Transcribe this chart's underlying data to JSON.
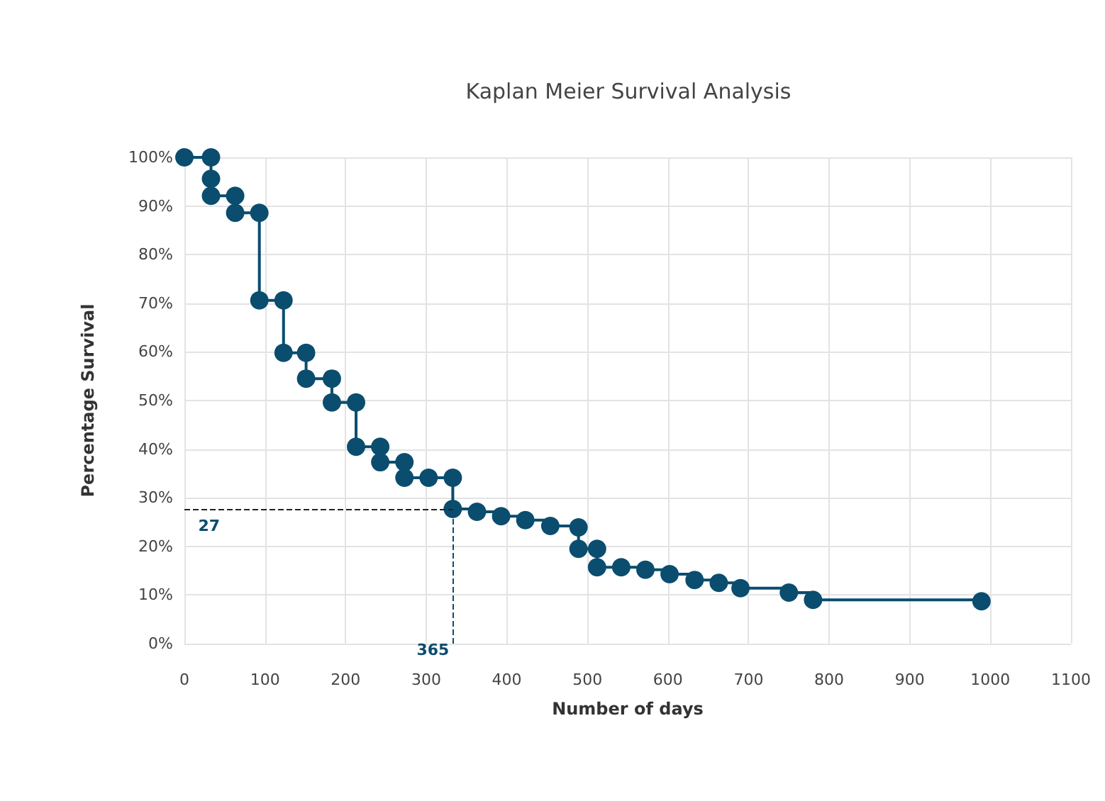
{
  "chart_data": {
    "type": "step",
    "title": "Kaplan Meier Survival Analysis",
    "xlabel": "Number of days",
    "ylabel": "Percentage Survival",
    "x": [
      0,
      33,
      33,
      33,
      63,
      63,
      93,
      93,
      123,
      123,
      151,
      151,
      183,
      183,
      213,
      213,
      243,
      243,
      273,
      273,
      303,
      333,
      333,
      363,
      393,
      423,
      454,
      489,
      489,
      512,
      512,
      542,
      572,
      602,
      633,
      663,
      690,
      750,
      780,
      989
    ],
    "series": [
      {
        "color": "#0a4d6e",
        "values": [
          100,
          100,
          95.6,
          92.1,
          92.1,
          88.6,
          88.6,
          70.6,
          70.6,
          59.8,
          59.8,
          54.5,
          54.5,
          49.6,
          49.6,
          40.5,
          40.5,
          37.3,
          37.3,
          34.1,
          34.1,
          34.1,
          27.7,
          27.1,
          26.2,
          25.4,
          24.2,
          23.9,
          19.5,
          19.5,
          15.7,
          15.7,
          15.2,
          14.3,
          13.1,
          12.5,
          11.4,
          10.5,
          9,
          8.7
        ]
      }
    ],
    "xlim": [
      0,
      1100
    ],
    "xticks": [
      0,
      100,
      200,
      300,
      400,
      500,
      600,
      700,
      800,
      900,
      1000,
      1100
    ],
    "ylim": [
      0,
      100
    ],
    "yticks": [
      {
        "value": 0,
        "label": "0%"
      },
      {
        "value": 10,
        "label": "10%"
      },
      {
        "value": 20,
        "label": "20%"
      },
      {
        "value": 30,
        "label": "30%"
      },
      {
        "value": 40,
        "label": "40%"
      },
      {
        "value": 50,
        "label": "50%"
      },
      {
        "value": 60,
        "label": "60%"
      },
      {
        "value": 70,
        "label": "70%"
      },
      {
        "value": 80,
        "label": "80%"
      },
      {
        "value": 90,
        "label": "90%"
      },
      {
        "value": 100,
        "label": "100%"
      }
    ],
    "ref_lines": [
      {
        "axis": "y",
        "value": 27.7,
        "line_style": "dashed",
        "color": "#222222"
      },
      {
        "axis": "x",
        "value": 333,
        "line_style": "dashed",
        "color": "#0a4d6e"
      }
    ],
    "annotations": [
      "27",
      "365"
    ],
    "grid": true,
    "marker": "circle",
    "line_style": "solid"
  }
}
